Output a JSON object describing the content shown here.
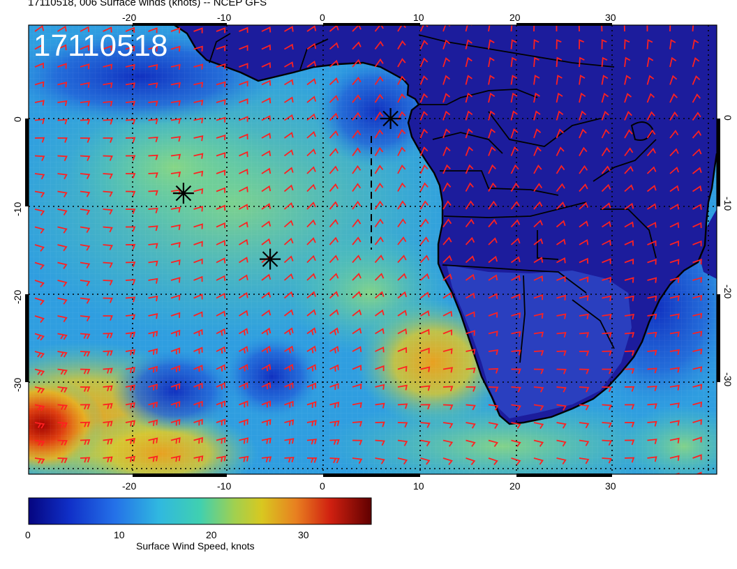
{
  "header": {
    "title": "17110518, 006 Surface winds (knots) -- NCEP GFS"
  },
  "map": {
    "timestamp": "17110518",
    "lon_range": [
      -30,
      41
    ],
    "lat_range": [
      -40,
      10
    ],
    "lon_ticks": [
      "-20",
      "-10",
      "0",
      "10",
      "20",
      "30"
    ],
    "lat_ticks": [
      "0",
      "-10",
      "-20",
      "-30"
    ],
    "storm_markers": [
      {
        "lon": 7,
        "lat": 0
      },
      {
        "lon": -14.5,
        "lat": -8.5
      },
      {
        "lon": -5.5,
        "lat": -16
      }
    ],
    "colors": {
      "barb": "#ff2020",
      "land": "#1c1c9c",
      "ocean_low": "#1f5ad8",
      "ocean_mid": "#33c3c8",
      "ocean_high": "#e0c020",
      "ocean_max": "#c41010"
    }
  },
  "colorbar": {
    "label": "Surface Wind Speed, knots",
    "ticks": [
      "0",
      "10",
      "20",
      "30"
    ],
    "range": [
      0,
      37
    ]
  }
}
